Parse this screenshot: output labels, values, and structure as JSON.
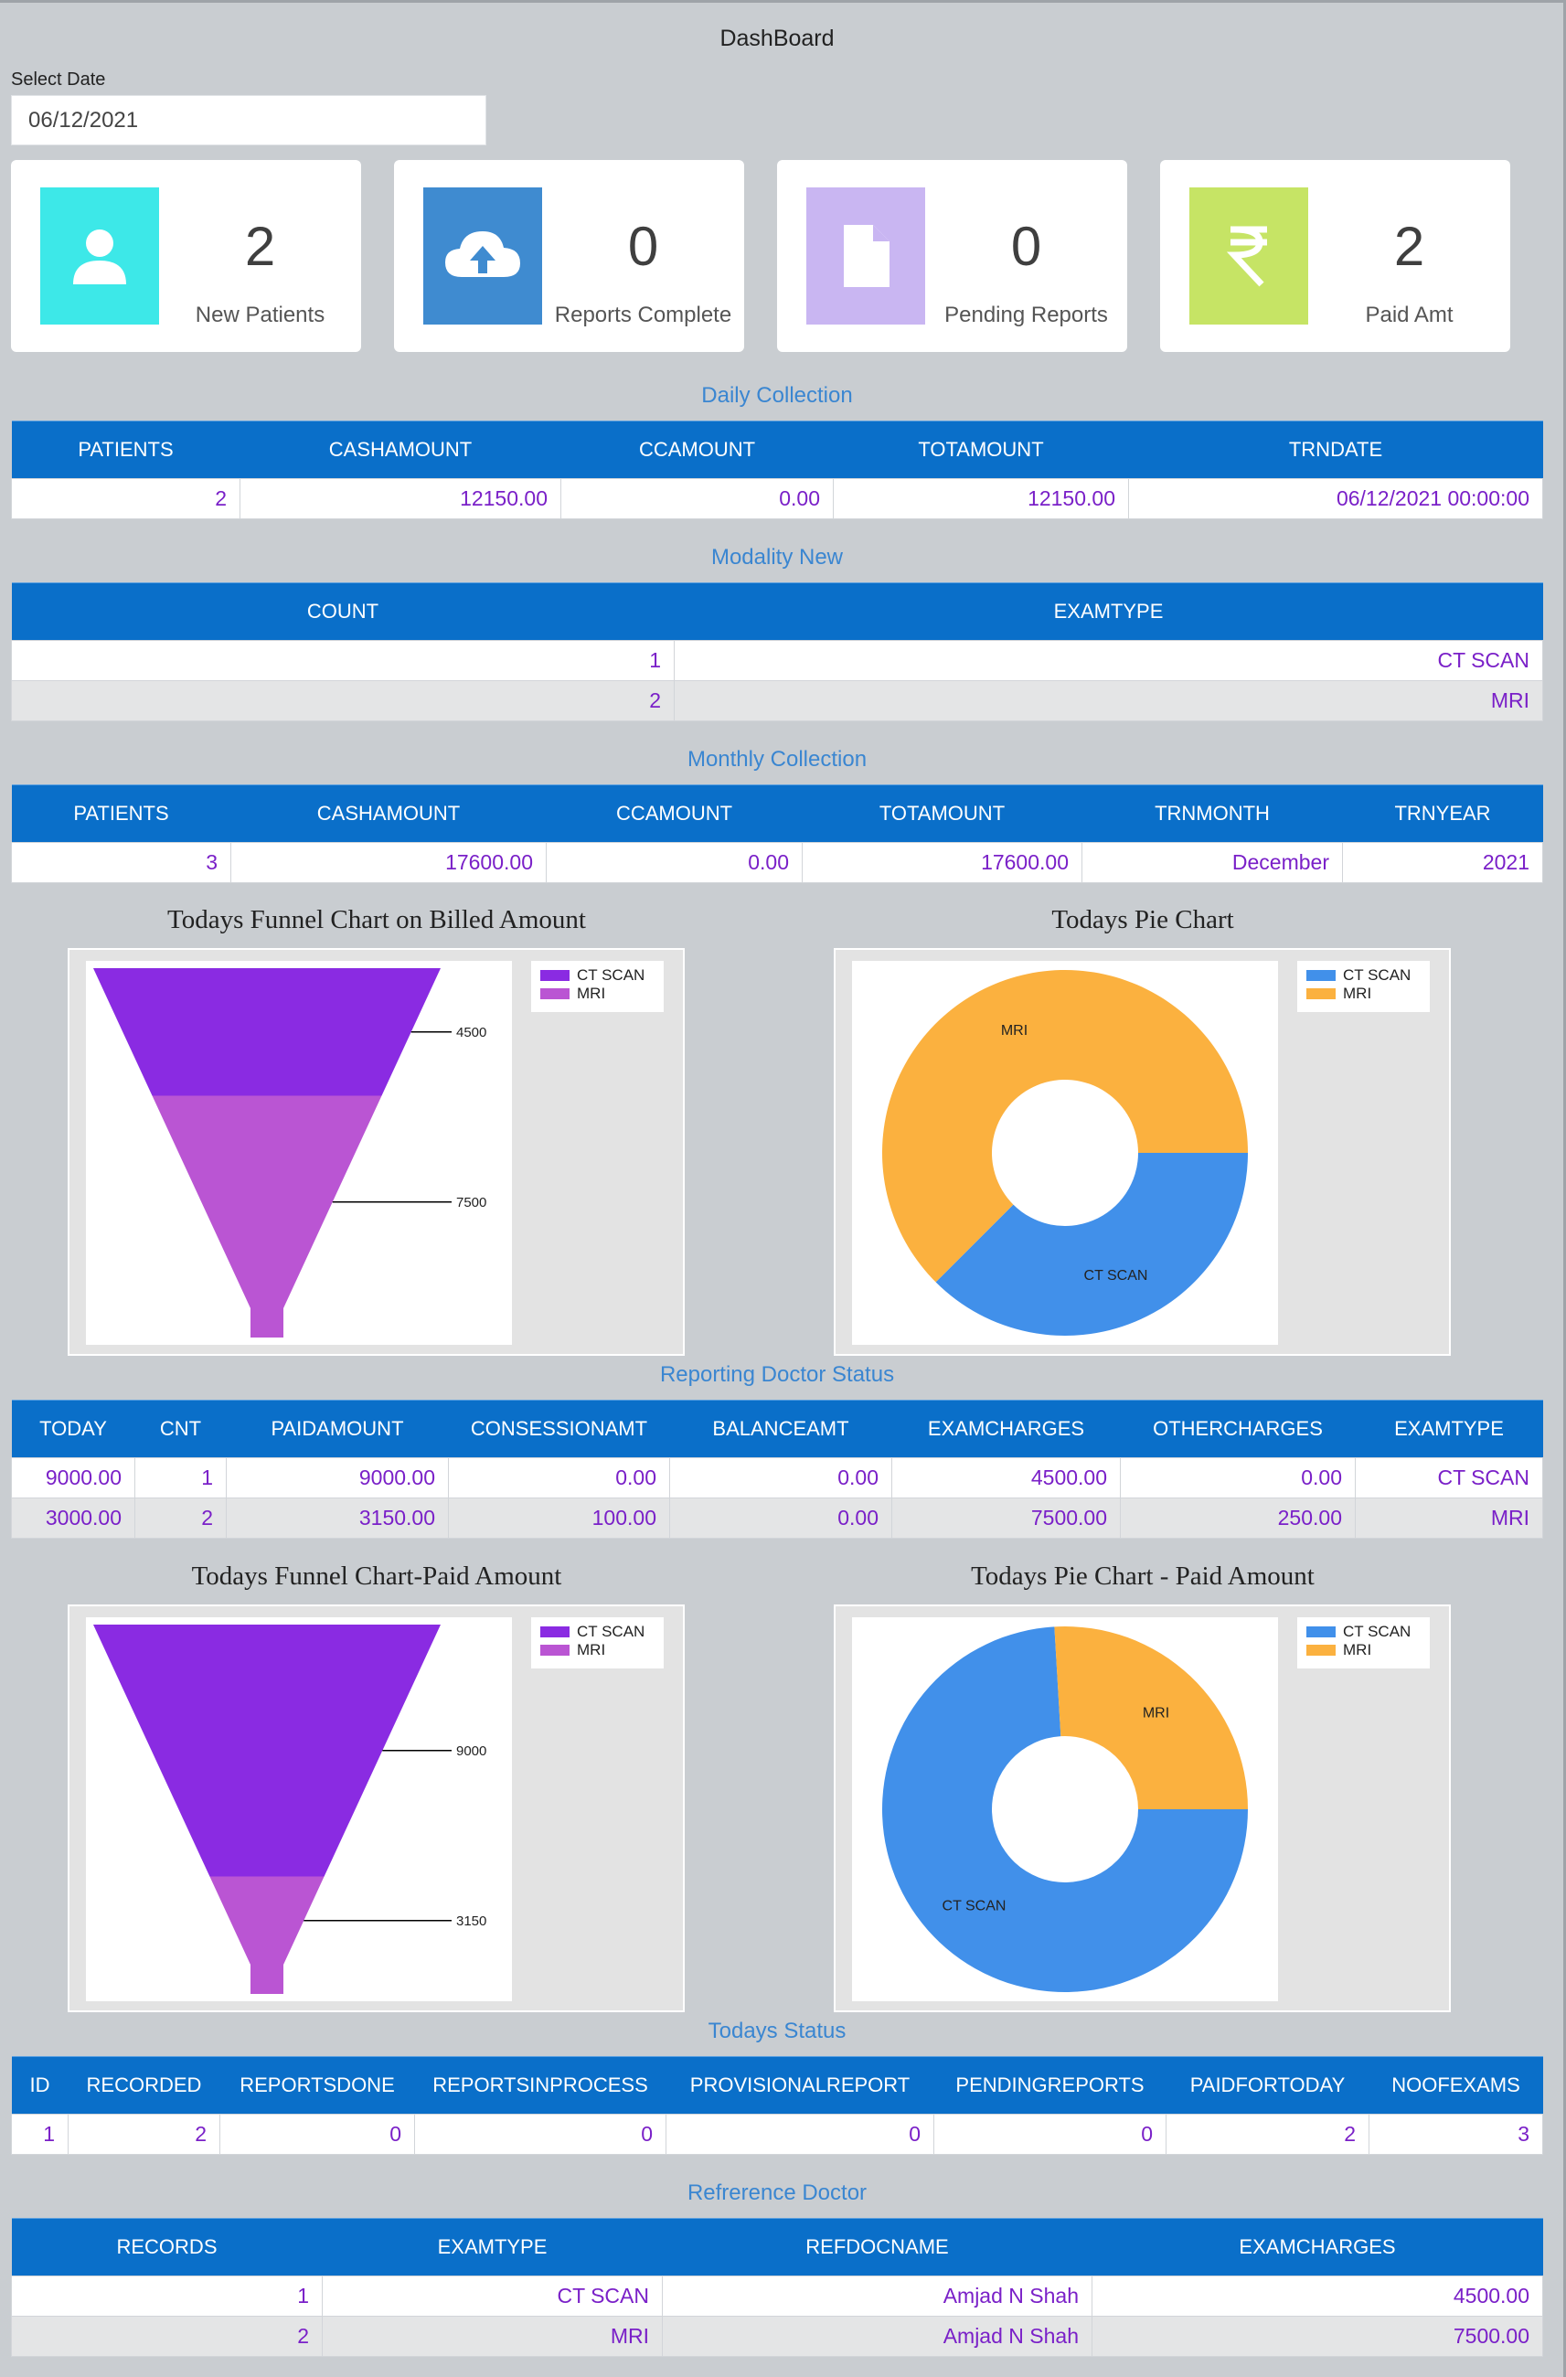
{
  "header": {
    "title": "DashBoard"
  },
  "date": {
    "label": "Select Date",
    "value": "06/12/2021"
  },
  "cards": [
    {
      "value": "2",
      "label": "New Patients",
      "color": "#3de8e8",
      "icon": "user-icon"
    },
    {
      "value": "0",
      "label": "Reports Complete",
      "color": "#3f8bd0",
      "icon": "cloud-upload-icon"
    },
    {
      "value": "0",
      "label": "Pending Reports",
      "color": "#c9b6f2",
      "icon": "document-icon"
    },
    {
      "value": "2",
      "label": "Paid Amt",
      "color": "#c6e465",
      "icon": "rupee-icon"
    }
  ],
  "daily_collection": {
    "title": "Daily Collection",
    "headers": [
      "PATIENTS",
      "CASHAMOUNT",
      "CCAMOUNT",
      "TOTAMOUNT",
      "TRNDATE"
    ],
    "rows": [
      [
        "2",
        "12150.00",
        "0.00",
        "12150.00",
        "06/12/2021 00:00:00"
      ]
    ]
  },
  "modality_new": {
    "title": "Modality New",
    "headers": [
      "COUNT",
      "EXAMTYPE"
    ],
    "rows": [
      [
        "1",
        "CT SCAN"
      ],
      [
        "2",
        "MRI"
      ]
    ]
  },
  "monthly_collection": {
    "title": "Monthly Collection",
    "headers": [
      "PATIENTS",
      "CASHAMOUNT",
      "CCAMOUNT",
      "TOTAMOUNT",
      "TRNMONTH",
      "TRNYEAR"
    ],
    "rows": [
      [
        "3",
        "17600.00",
        "0.00",
        "17600.00",
        "December",
        "2021"
      ]
    ]
  },
  "charts": {
    "funnel_billed_title": "Todays Funnel Chart on Billed Amount",
    "pie_billed_title": "Todays Pie Chart",
    "funnel_paid_title": "Todays Funnel Chart-Paid Amount",
    "pie_paid_title": "Todays Pie Chart - Paid Amount"
  },
  "reporting_doctor_status": {
    "title": "Reporting Doctor Status",
    "headers": [
      "TODAY",
      "CNT",
      "PAIDAMOUNT",
      "CONSESSIONAMT",
      "BALANCEAMT",
      "EXAMCHARGES",
      "OTHERCHARGES",
      "EXAMTYPE"
    ],
    "rows": [
      [
        "9000.00",
        "1",
        "9000.00",
        "0.00",
        "0.00",
        "4500.00",
        "0.00",
        "CT SCAN"
      ],
      [
        "3000.00",
        "2",
        "3150.00",
        "100.00",
        "0.00",
        "7500.00",
        "250.00",
        "MRI"
      ]
    ]
  },
  "todays_status": {
    "title": "Todays Status",
    "headers": [
      "ID",
      "RECORDED",
      "REPORTSDONE",
      "REPORTSINPROCESS",
      "PROVISIONALREPORT",
      "PENDINGREPORTS",
      "PAIDFORTODAY",
      "NOOFEXAMS"
    ],
    "rows": [
      [
        "1",
        "2",
        "0",
        "0",
        "0",
        "0",
        "2",
        "3"
      ]
    ]
  },
  "reference_doctor": {
    "title": "Refrerence Doctor",
    "headers": [
      "RECORDS",
      "EXAMTYPE",
      "REFDOCNAME",
      "EXAMCHARGES"
    ],
    "rows": [
      [
        "1",
        "CT SCAN",
        "Amjad N Shah",
        "4500.00"
      ],
      [
        "2",
        "MRI",
        "Amjad N Shah",
        "7500.00"
      ]
    ]
  },
  "chart_data": [
    {
      "type": "funnel",
      "title": "Todays Funnel Chart on Billed Amount",
      "categories": [
        "CT SCAN",
        "MRI"
      ],
      "values": [
        4500,
        7500
      ],
      "colors": [
        "#8a2be2",
        "#ba55d3"
      ],
      "legend": "top-right"
    },
    {
      "type": "pie",
      "title": "Todays Pie Chart",
      "categories": [
        "CT SCAN",
        "MRI"
      ],
      "values": [
        4500,
        7500
      ],
      "colors": [
        "#4190ea",
        "#fbb13f"
      ],
      "donut": true,
      "legend": "top-right"
    },
    {
      "type": "funnel",
      "title": "Todays Funnel Chart-Paid Amount",
      "categories": [
        "CT SCAN",
        "MRI"
      ],
      "values": [
        9000,
        3150
      ],
      "colors": [
        "#8a2be2",
        "#ba55d3"
      ],
      "legend": "top-right"
    },
    {
      "type": "pie",
      "title": "Todays Pie Chart - Paid Amount",
      "categories": [
        "CT SCAN",
        "MRI"
      ],
      "values": [
        9000,
        3150
      ],
      "colors": [
        "#4190ea",
        "#fbb13f"
      ],
      "donut": true,
      "legend": "top-right"
    }
  ]
}
